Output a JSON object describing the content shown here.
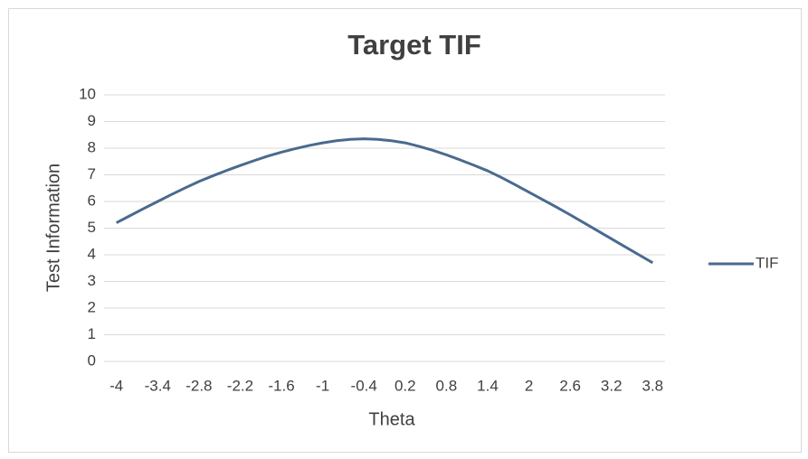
{
  "chart_data": {
    "type": "line",
    "title": "Target TIF",
    "x_label": "Theta",
    "y_label": "Test Information",
    "x": [
      -4,
      -3.8,
      -3.6,
      -3.4,
      -3.2,
      -3,
      -2.8,
      -2.6,
      -2.4,
      -2.2,
      -2,
      -1.8,
      -1.6,
      -1.4,
      -1.2,
      -1,
      -0.8,
      -0.6,
      -0.4,
      -0.2,
      0,
      0.2,
      0.4,
      0.6,
      0.8,
      1,
      1.2,
      1.4,
      1.6,
      1.8,
      2,
      2.2,
      2.4,
      2.6,
      2.8,
      3,
      3.2,
      3.4,
      3.6,
      3.8
    ],
    "series": [
      {
        "name": "TIF",
        "color": "#4a6a8f",
        "values": [
          5.2,
          5.47,
          5.74,
          6.0,
          6.26,
          6.51,
          6.75,
          6.96,
          7.16,
          7.35,
          7.53,
          7.7,
          7.85,
          7.98,
          8.1,
          8.2,
          8.28,
          8.33,
          8.35,
          8.33,
          8.28,
          8.2,
          8.07,
          7.92,
          7.75,
          7.56,
          7.36,
          7.15,
          6.9,
          6.63,
          6.35,
          6.07,
          5.79,
          5.5,
          5.2,
          4.9,
          4.6,
          4.3,
          4.0,
          3.7
        ]
      }
    ],
    "xlim": [
      -4.18,
      3.98
    ],
    "xticks": [
      -4,
      -3.4,
      -2.8,
      -2.2,
      -1.6,
      -1,
      -0.4,
      0.2,
      0.8,
      1.4,
      2,
      2.6,
      3.2,
      3.8
    ],
    "ylim": [
      0,
      10
    ],
    "yticks": [
      0,
      1,
      2,
      3,
      4,
      5,
      6,
      7,
      8,
      9,
      10
    ],
    "grid": true,
    "legend": "right"
  }
}
